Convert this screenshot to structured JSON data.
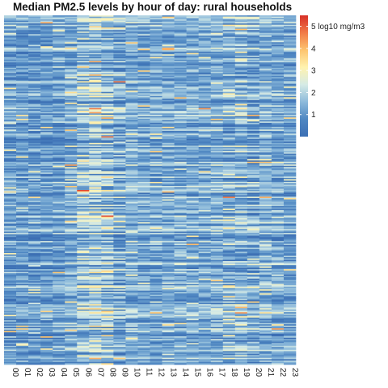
{
  "chart_data": {
    "type": "heatmap",
    "title": "Median PM2.5 levels by hour of day: rural households",
    "xlabel": "",
    "ylabel": "",
    "x_categories": [
      "00",
      "01",
      "02",
      "03",
      "04",
      "05",
      "06",
      "07",
      "08",
      "09",
      "10",
      "11",
      "12",
      "13",
      "14",
      "15",
      "16",
      "17",
      "18",
      "19",
      "20",
      "21",
      "22",
      "23"
    ],
    "row_count": 260,
    "value_unit": "log10 mg/m3",
    "colorbar": {
      "min": 0,
      "max": 5.5,
      "ticks": [
        1,
        2,
        3,
        4,
        5
      ],
      "tick_labels": [
        "1",
        "2",
        "3",
        "4",
        "5 log10 mg/m3"
      ],
      "palette": [
        "#3c6fb4",
        "#4f87c2",
        "#8dbadb",
        "#d6ebe6",
        "#fff3b0",
        "#fdc46f",
        "#f17b48",
        "#d73027"
      ]
    },
    "hourly_typical_levels": [
      1.7,
      1.6,
      1.6,
      1.6,
      1.7,
      2.0,
      3.3,
      3.4,
      3.1,
      2.6,
      2.1,
      1.9,
      1.9,
      1.9,
      2.0,
      2.0,
      2.0,
      2.1,
      2.8,
      3.0,
      2.5,
      2.1,
      1.9,
      1.8
    ],
    "grid": false,
    "legend_position": "right"
  }
}
